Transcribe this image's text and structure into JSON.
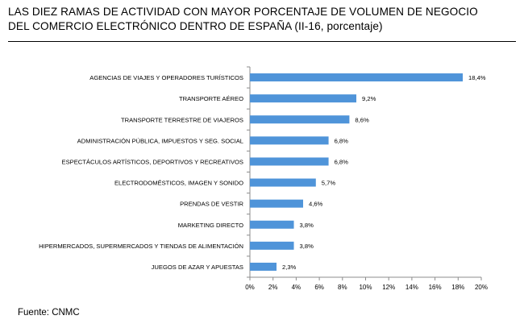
{
  "header": {
    "title_line1": "LAS DIEZ RAMAS DE ACTIVIDAD CON MAYOR PORCENTAJE DE VOLUMEN DE NEGOCIO",
    "title_line2": "DEL COMERCIO ELECTRÓNICO DENTRO DE ESPAÑA (II-16, porcentaje)"
  },
  "footer": {
    "source": "Fuente: CNMC"
  },
  "colors": {
    "bar": "#4f94d9",
    "axis": "#8c8c8c"
  },
  "chart_data": {
    "type": "bar",
    "orientation": "horizontal",
    "categories": [
      "AGENCIAS DE VIAJES Y OPERADORES TURÍSTICOS",
      "TRANSPORTE AÉREO",
      "TRANSPORTE TERRESTRE DE VIAJEROS",
      "ADMINISTRACIÓN PÚBLICA, IMPUESTOS Y SEG. SOCIAL",
      "ESPECTÁCULOS ARTÍSTICOS, DEPORTIVOS Y RECREATIVOS",
      "ELECTRODOMÉSTICOS,  IMAGEN Y SONIDO",
      "PRENDAS DE VESTIR",
      "MARKETING DIRECTO",
      "HIPERMERCADOS, SUPERMERCADOS Y TIENDAS DE ALIMENTACIÓN",
      "JUEGOS DE AZAR Y APUESTAS"
    ],
    "values": [
      18.4,
      9.2,
      8.6,
      6.8,
      6.8,
      5.7,
      4.6,
      3.8,
      3.8,
      2.3
    ],
    "value_labels": [
      "18,4%",
      "9,2%",
      "8,6%",
      "6,8%",
      "6,8%",
      "5,7%",
      "4,6%",
      "3,8%",
      "3,8%",
      "2,3%"
    ],
    "xlim": [
      0,
      20
    ],
    "x_ticks": [
      "0%",
      "2%",
      "4%",
      "6%",
      "8%",
      "10%",
      "12%",
      "14%",
      "16%",
      "18%",
      "20%"
    ],
    "grid": false,
    "legend": "none"
  }
}
